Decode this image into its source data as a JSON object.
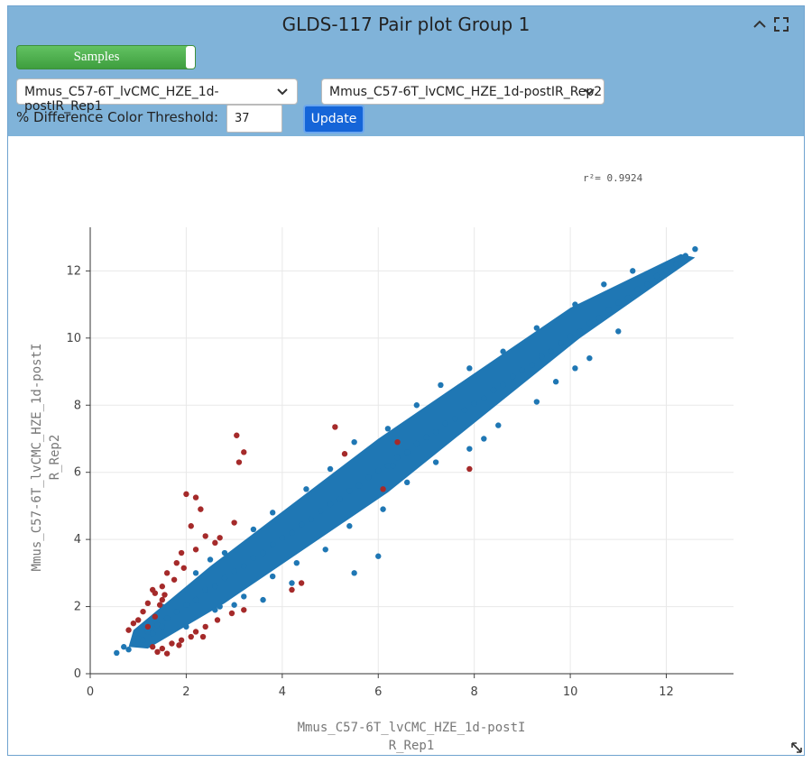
{
  "panel": {
    "title": "GLDS-117 Pair plot Group 1",
    "icons": {
      "collapse": "chevron-up-icon",
      "fullscreen": "expand-icon",
      "resize": "resize-icon",
      "dropdown": "chevron-down-icon"
    }
  },
  "controls": {
    "samples_label": "Samples",
    "sample_x": "Mmus_C57-6T_lvCMC_HZE_1d-postIR_Rep1",
    "sample_y": "Mmus_C57-6T_lvCMC_HZE_1d-postIR_Rep2",
    "threshold_label": "% Difference Color Threshold:",
    "threshold_value": "37",
    "update_label": "Update"
  },
  "colors": {
    "header_bg": "#80b3d9",
    "toggle_green": "#4caf50",
    "update_blue": "#1565d8",
    "point_blue": "#1f77b4",
    "point_red": "#a52a2a"
  },
  "chart_data": {
    "type": "scatter",
    "annotation": "r²= 0.9924",
    "xlabel_lines": [
      "Mmus_C57-6T_lvCMC_HZE_1d-postI",
      "R_Rep1"
    ],
    "ylabel_lines": [
      "Mmus_C57-6T_lvCMC_HZE_1d-postI",
      "R_Rep2"
    ],
    "xlim": [
      0,
      13.4
    ],
    "ylim": [
      0,
      13.3
    ],
    "xticks": [
      0,
      2,
      4,
      6,
      8,
      10,
      12
    ],
    "yticks": [
      0,
      2,
      4,
      6,
      8,
      10,
      12
    ],
    "grid": true,
    "series": [
      {
        "color": "#1f77b4",
        "points": [
          [
            0.55,
            0.62
          ],
          [
            0.7,
            0.8
          ],
          [
            0.8,
            0.72
          ],
          [
            0.9,
            0.95
          ],
          [
            1.0,
            1.05
          ],
          [
            1.1,
            1.0
          ],
          [
            1.2,
            1.25
          ],
          [
            1.3,
            1.2
          ],
          [
            1.4,
            1.45
          ],
          [
            1.5,
            1.4
          ],
          [
            1.6,
            1.65
          ],
          [
            1.8,
            1.85
          ],
          [
            2.0,
            2.05
          ],
          [
            2.2,
            2.2
          ],
          [
            2.4,
            2.5
          ],
          [
            2.6,
            2.6
          ],
          [
            2.8,
            2.85
          ],
          [
            3.0,
            3.05
          ],
          [
            3.2,
            3.2
          ],
          [
            3.4,
            3.45
          ],
          [
            3.6,
            3.6
          ],
          [
            3.8,
            3.85
          ],
          [
            4.0,
            4.05
          ],
          [
            4.2,
            4.2
          ],
          [
            4.4,
            4.45
          ],
          [
            4.6,
            4.6
          ],
          [
            4.8,
            4.85
          ],
          [
            5.0,
            5.05
          ],
          [
            5.2,
            5.2
          ],
          [
            5.4,
            5.45
          ],
          [
            5.6,
            5.6
          ],
          [
            5.8,
            5.85
          ],
          [
            6.0,
            6.05
          ],
          [
            6.2,
            6.2
          ],
          [
            6.4,
            6.45
          ],
          [
            6.6,
            6.6
          ],
          [
            6.8,
            6.85
          ],
          [
            7.0,
            7.05
          ],
          [
            7.2,
            7.2
          ],
          [
            7.4,
            7.45
          ],
          [
            7.6,
            7.6
          ],
          [
            7.8,
            7.85
          ],
          [
            8.0,
            8.05
          ],
          [
            8.2,
            8.2
          ],
          [
            8.4,
            8.45
          ],
          [
            8.6,
            8.6
          ],
          [
            8.8,
            8.85
          ],
          [
            9.0,
            9.05
          ],
          [
            9.2,
            9.2
          ],
          [
            9.4,
            9.45
          ],
          [
            9.6,
            9.6
          ],
          [
            9.8,
            9.85
          ],
          [
            10.0,
            10.05
          ],
          [
            10.2,
            10.2
          ],
          [
            10.4,
            10.45
          ],
          [
            10.6,
            10.6
          ],
          [
            10.8,
            10.85
          ],
          [
            11.0,
            11.05
          ],
          [
            11.2,
            11.2
          ],
          [
            11.4,
            11.45
          ],
          [
            11.6,
            11.6
          ],
          [
            11.8,
            11.85
          ],
          [
            12.0,
            12.0
          ],
          [
            12.2,
            12.2
          ],
          [
            12.4,
            12.45
          ],
          [
            12.6,
            12.65
          ],
          [
            1.5,
            2.0
          ],
          [
            2.2,
            3.0
          ],
          [
            2.5,
            3.4
          ],
          [
            2.8,
            3.6
          ],
          [
            3.4,
            4.3
          ],
          [
            3.8,
            4.8
          ],
          [
            4.5,
            5.5
          ],
          [
            5.0,
            6.1
          ],
          [
            5.5,
            6.9
          ],
          [
            6.2,
            7.3
          ],
          [
            6.8,
            8.0
          ],
          [
            7.3,
            8.6
          ],
          [
            7.9,
            9.1
          ],
          [
            8.6,
            9.6
          ],
          [
            9.3,
            10.3
          ],
          [
            10.1,
            11.0
          ],
          [
            10.7,
            11.6
          ],
          [
            11.3,
            12.0
          ],
          [
            2.0,
            1.4
          ],
          [
            2.6,
            1.9
          ],
          [
            3.2,
            2.3
          ],
          [
            3.8,
            2.9
          ],
          [
            4.3,
            3.3
          ],
          [
            4.9,
            3.7
          ],
          [
            5.4,
            4.4
          ],
          [
            6.1,
            4.9
          ],
          [
            6.6,
            5.7
          ],
          [
            7.2,
            6.3
          ],
          [
            7.9,
            6.7
          ],
          [
            8.5,
            7.4
          ],
          [
            9.3,
            8.1
          ],
          [
            9.7,
            8.7
          ],
          [
            10.4,
            9.4
          ],
          [
            11.0,
            10.2
          ],
          [
            3.0,
            2.05
          ],
          [
            2.7,
            2.0
          ],
          [
            5.5,
            3.0
          ],
          [
            6.0,
            3.5
          ],
          [
            4.2,
            2.7
          ],
          [
            3.6,
            2.2
          ],
          [
            6.3,
            6.2
          ],
          [
            8.2,
            7.0
          ],
          [
            10.1,
            9.1
          ]
        ]
      },
      {
        "color": "#a52a2a",
        "points": [
          [
            3.05,
            7.1
          ],
          [
            3.2,
            6.6
          ],
          [
            3.1,
            6.3
          ],
          [
            2.0,
            5.35
          ],
          [
            2.2,
            5.25
          ],
          [
            2.3,
            4.9
          ],
          [
            2.7,
            4.05
          ],
          [
            3.0,
            4.5
          ],
          [
            2.1,
            4.4
          ],
          [
            2.4,
            4.1
          ],
          [
            1.9,
            3.6
          ],
          [
            2.6,
            3.9
          ],
          [
            1.8,
            3.3
          ],
          [
            2.2,
            3.7
          ],
          [
            1.95,
            3.15
          ],
          [
            1.6,
            3.0
          ],
          [
            1.75,
            2.8
          ],
          [
            1.5,
            2.6
          ],
          [
            1.35,
            2.4
          ],
          [
            1.5,
            2.2
          ],
          [
            1.2,
            2.1
          ],
          [
            1.45,
            2.05
          ],
          [
            1.1,
            1.85
          ],
          [
            1.35,
            1.7
          ],
          [
            1.0,
            1.6
          ],
          [
            1.2,
            1.4
          ],
          [
            0.9,
            1.5
          ],
          [
            0.8,
            1.3
          ],
          [
            1.3,
            2.5
          ],
          [
            1.55,
            2.35
          ],
          [
            1.3,
            0.8
          ],
          [
            1.5,
            0.75
          ],
          [
            1.7,
            0.9
          ],
          [
            1.9,
            1.0
          ],
          [
            2.1,
            1.1
          ],
          [
            2.2,
            1.25
          ],
          [
            1.85,
            0.85
          ],
          [
            1.6,
            0.6
          ],
          [
            1.4,
            0.65
          ],
          [
            2.4,
            1.4
          ],
          [
            2.65,
            1.6
          ],
          [
            2.95,
            1.8
          ],
          [
            2.35,
            1.1
          ],
          [
            4.4,
            2.7
          ],
          [
            4.2,
            2.5
          ],
          [
            3.2,
            1.9
          ],
          [
            5.1,
            7.35
          ],
          [
            6.1,
            5.5
          ],
          [
            5.3,
            6.55
          ],
          [
            6.4,
            6.9
          ],
          [
            7.9,
            6.1
          ]
        ]
      }
    ]
  }
}
